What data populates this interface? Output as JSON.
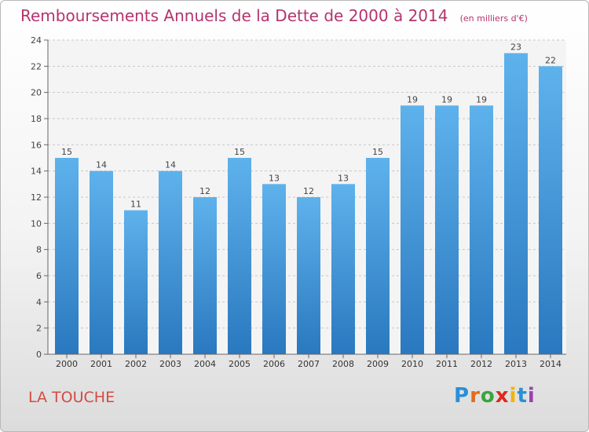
{
  "chart_data": {
    "type": "bar",
    "title": "Remboursements Annuels de la Dette de 2000 à 2014",
    "subtitle": "(en milliers d'€)",
    "categories": [
      "2000",
      "2001",
      "2002",
      "2003",
      "2004",
      "2005",
      "2006",
      "2007",
      "2008",
      "2009",
      "2010",
      "2011",
      "2012",
      "2013",
      "2014"
    ],
    "values": [
      15,
      14,
      11,
      14,
      12,
      15,
      13,
      12,
      13,
      15,
      19,
      19,
      19,
      23,
      22
    ],
    "ylim": [
      0,
      24
    ],
    "yticks": [
      0,
      2,
      4,
      6,
      8,
      10,
      12,
      14,
      16,
      18,
      20,
      22,
      24
    ],
    "xlabel": "",
    "ylabel": "",
    "bar_color": "#4a9fe0",
    "grid": "horizontal dashed"
  },
  "commune": "LA TOUCHE",
  "logo": {
    "letters": [
      "P",
      "r",
      "o",
      "x",
      "i",
      "t",
      "i"
    ]
  },
  "colors": {
    "title": "#b5336f",
    "commune": "#d24a43"
  }
}
